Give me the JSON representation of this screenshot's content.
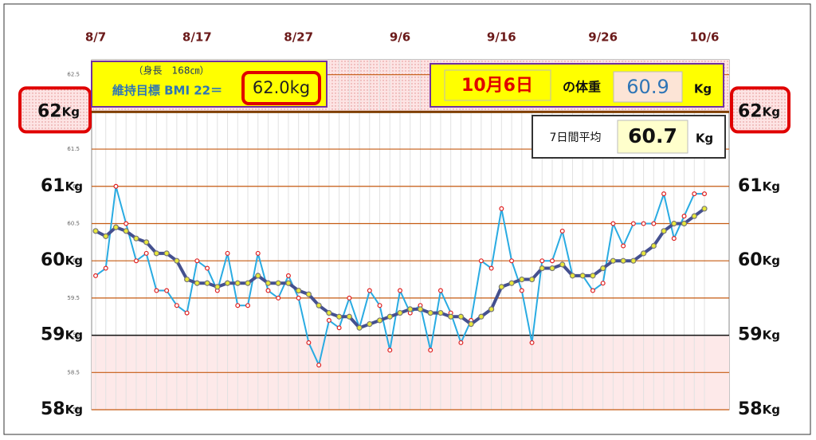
{
  "chart_data": {
    "type": "line",
    "categories": [
      "8/7",
      null,
      null,
      null,
      null,
      null,
      null,
      null,
      null,
      null,
      "8/17",
      null,
      null,
      null,
      null,
      null,
      null,
      null,
      null,
      null,
      "8/27",
      null,
      null,
      null,
      null,
      null,
      null,
      null,
      null,
      null,
      "9/6",
      null,
      null,
      null,
      null,
      null,
      null,
      null,
      null,
      null,
      "9/16",
      null,
      null,
      null,
      null,
      null,
      null,
      null,
      null,
      null,
      "9/26",
      null,
      null,
      null,
      null,
      null,
      null,
      null,
      null,
      null,
      "10/6"
    ],
    "series": [
      {
        "color": "#29abe2",
        "marker_color": "#e02020",
        "values": [
          59.8,
          59.9,
          61.0,
          60.5,
          60.0,
          60.1,
          59.6,
          59.6,
          59.4,
          59.3,
          60.0,
          59.9,
          59.6,
          60.1,
          59.4,
          59.4,
          60.1,
          59.6,
          59.5,
          59.8,
          59.5,
          58.9,
          58.6,
          59.2,
          59.1,
          59.5,
          59.1,
          59.6,
          59.4,
          58.8,
          59.6,
          59.3,
          59.4,
          58.8,
          59.6,
          59.3,
          58.9,
          59.2,
          60.0,
          59.9,
          60.7,
          60.0,
          59.6,
          58.9,
          60.0,
          60.0,
          60.4,
          59.8,
          59.8,
          59.6,
          59.7,
          60.5,
          60.2,
          60.5,
          60.5,
          60.5,
          60.9,
          60.3,
          60.6,
          60.9,
          60.9
        ]
      },
      {
        "color": "#44508f",
        "marker_color": "#e8e83a",
        "values": [
          60.4,
          60.33,
          60.45,
          60.4,
          60.3,
          60.25,
          60.1,
          60.1,
          60.0,
          59.75,
          59.7,
          59.7,
          59.65,
          59.7,
          59.7,
          59.7,
          59.8,
          59.7,
          59.7,
          59.7,
          59.6,
          59.55,
          59.4,
          59.3,
          59.25,
          59.25,
          59.1,
          59.15,
          59.2,
          59.25,
          59.3,
          59.35,
          59.35,
          59.3,
          59.3,
          59.25,
          59.25,
          59.15,
          59.25,
          59.35,
          59.65,
          59.7,
          59.75,
          59.75,
          59.9,
          59.9,
          59.95,
          59.8,
          59.8,
          59.8,
          59.9,
          60.0,
          60.0,
          60.0,
          60.1,
          60.2,
          60.4,
          60.5,
          60.5,
          60.6,
          60.7
        ]
      }
    ],
    "ylim": [
      58,
      62.7
    ],
    "yticks": [
      58,
      58.5,
      59,
      59.5,
      60,
      60.5,
      61,
      61.5,
      62,
      62.5
    ],
    "target": 62,
    "lower_limit": 59,
    "kg_labels": [
      62,
      61,
      60,
      59,
      58
    ],
    "unit": "Kg",
    "info": {
      "height_note": "（身長　168㎝）",
      "bmi_label": "維持目標 BMI 22＝",
      "target_text": "62.0kg",
      "date": "10月6日",
      "weight_label": "の体重",
      "latest": "60.9",
      "avg_label": "7日間平均",
      "avg": "60.7"
    }
  }
}
